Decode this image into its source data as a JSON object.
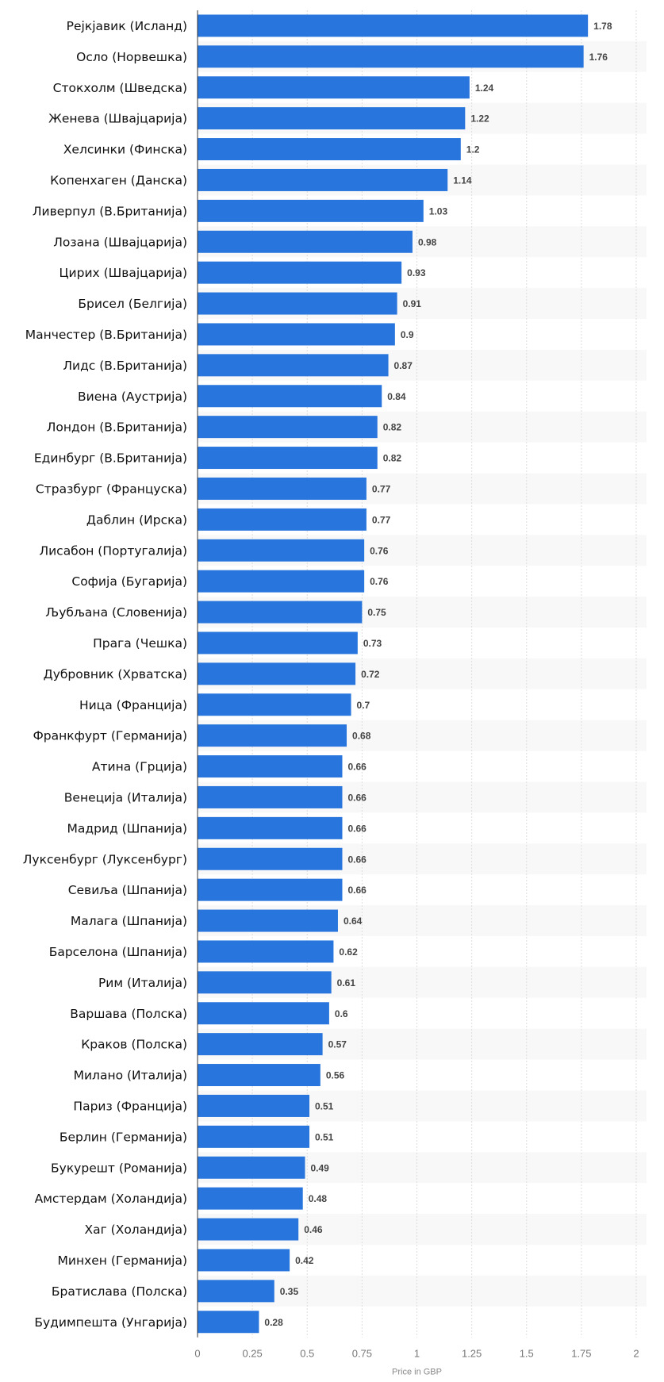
{
  "chart_data": {
    "type": "bar",
    "orientation": "horizontal",
    "xlabel": "Price in GBP",
    "xlim": [
      0,
      2
    ],
    "xticks": [
      "0",
      "0.25",
      "0.5",
      "0.75",
      "1",
      "1.25",
      "1.5",
      "1.75",
      "2"
    ],
    "grid": true,
    "bar_color": "#2876dd",
    "stripe_color": "#f8f8f8",
    "categories": [
      "Рејкјавик (Исланд)",
      "Осло (Норвешка)",
      "Стокхолм (Шведска)",
      "Женева (Швајцарија)",
      "Хелсинки (Финска)",
      "Копенхаген (Данска)",
      "Ливерпул (В.Британија)",
      "Лозана (Швајцарија)",
      "Цирих (Швајцарија)",
      "Брисел (Белгија)",
      "Манчестер (В.Британија)",
      "Лидс (В.Британија)",
      "Виена (Аустрија)",
      "Лондон (В.Британија)",
      "Единбург (В.Британија)",
      "Стразбург (Француска)",
      "Даблин (Ирска)",
      "Лисабон (Португалија)",
      "Софија (Бугарија)",
      "Љубљана (Словенија)",
      "Прага (Чешка)",
      "Дубровник (Хрватска)",
      "Ница (Франција)",
      "Франкфурт (Германија)",
      "Атина (Грција)",
      "Венеција (Италија)",
      "Мадрид (Шпанија)",
      "Луксенбург (Луксенбург)",
      "Севиља (Шпанија)",
      "Малага (Шпанија)",
      "Барселона (Шпанија)",
      "Рим (Италија)",
      "Варшава (Полска)",
      "Краков (Полска)",
      "Милано (Италија)",
      "Париз (Франција)",
      "Берлин (Германија)",
      "Букурешт (Романија)",
      "Амстердам (Холандија)",
      "Хаг (Холандија)",
      "Минхен (Германија)",
      "Братислава (Полска)",
      "Будимпешта (Унгарија)"
    ],
    "values": [
      1.78,
      1.76,
      1.24,
      1.22,
      1.2,
      1.14,
      1.03,
      0.98,
      0.93,
      0.91,
      0.9,
      0.87,
      0.84,
      0.82,
      0.82,
      0.77,
      0.77,
      0.76,
      0.76,
      0.75,
      0.73,
      0.72,
      0.7,
      0.68,
      0.66,
      0.66,
      0.66,
      0.66,
      0.66,
      0.64,
      0.62,
      0.61,
      0.6,
      0.57,
      0.56,
      0.51,
      0.51,
      0.49,
      0.48,
      0.46,
      0.42,
      0.35,
      0.28
    ]
  }
}
